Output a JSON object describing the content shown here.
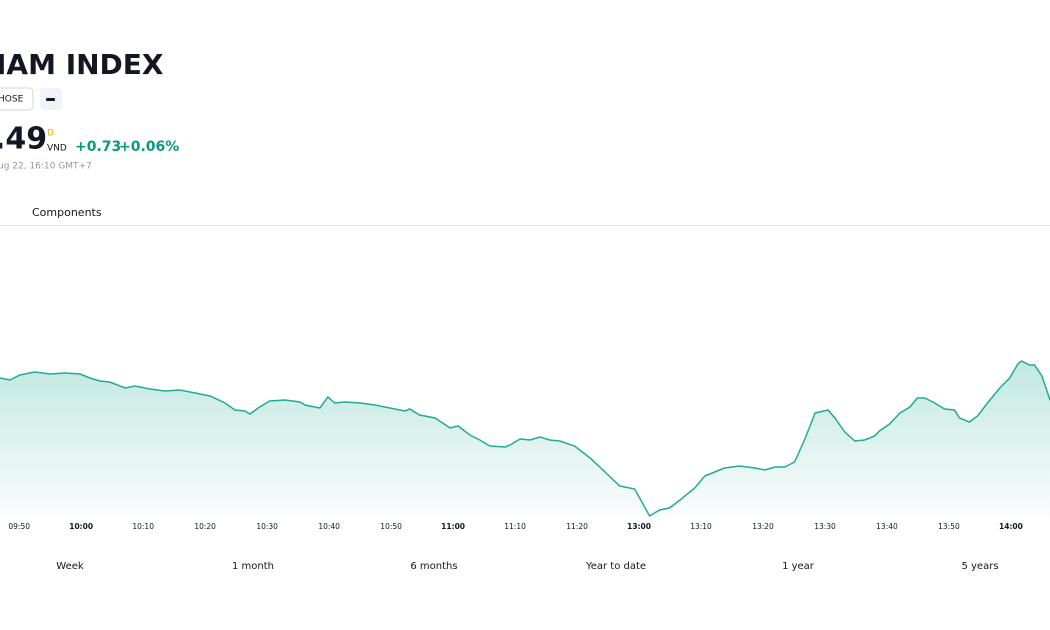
{
  "header": {
    "title": "IAM INDEX",
    "exchange": "HOSE",
    "price": ".49",
    "currency_mark": "D",
    "currency": "VND",
    "change": "+0.73",
    "change_percent": "+0.06%",
    "timestamp": "ug 22, 16:10 GMT+7"
  },
  "tabs": [
    "Components"
  ],
  "chart_data": {
    "type": "line",
    "color": "#22ab94",
    "x": [
      46.9,
      48.5,
      50.1,
      52.5,
      55.0,
      57.4,
      59.8,
      61.4,
      63.0,
      64.6,
      67.1,
      68.7,
      71.1,
      73.5,
      75.9,
      78.4,
      80.8,
      83.2,
      84.8,
      86.4,
      87.2,
      88.8,
      90.4,
      92.9,
      95.3,
      96.1,
      98.5,
      99.8,
      100.9,
      102.5,
      105.0,
      107.4,
      109.8,
      112.2,
      113.0,
      114.6,
      117.1,
      119.5,
      120.8,
      122.7,
      124.3,
      125.9,
      128.4,
      129.2,
      130.8,
      132.4,
      134.0,
      135.6,
      137.2,
      139.6,
      142.1,
      144.5,
      146.9,
      149.3,
      151.7,
      153.3,
      154.9,
      156.6,
      159.0,
      160.6,
      162.2,
      163.8,
      166.2,
      168.7,
      170.3,
      171.9,
      173.5,
      175.1,
      176.7,
      178.4,
      180.5,
      181.6,
      183.2,
      184.8,
      186.4,
      188.0,
      188.8,
      190.4,
      192.1,
      193.7,
      194.9,
      196.1,
      197.7,
      199.3,
      200.9,
      201.7,
      203.3,
      204.6,
      206.6,
      208.2,
      209.8,
      211.1,
      211.7,
      213.0,
      213.8,
      215.0,
      216.3
    ],
    "values": [
      139,
      137,
      142,
      145,
      143,
      144,
      143,
      139,
      136,
      135,
      129,
      131,
      128,
      126,
      127,
      124,
      121,
      114,
      107,
      106,
      103,
      110,
      116,
      117,
      115,
      112,
      109,
      120,
      114,
      115,
      114,
      112,
      109,
      106,
      108,
      102,
      99,
      89,
      91,
      82,
      77,
      71,
      70,
      72,
      78,
      77,
      80,
      77,
      76,
      71,
      59,
      45,
      31,
      28,
      1,
      7,
      9,
      17,
      29,
      41,
      45,
      49,
      51,
      49,
      47,
      50,
      50,
      55,
      77,
      104,
      107,
      99,
      85,
      76,
      77,
      81,
      86,
      93,
      104,
      110,
      119,
      119,
      114,
      108,
      107,
      99,
      95,
      101,
      117,
      129,
      139,
      153,
      156,
      152,
      152,
      141,
      117
    ],
    "xlim": [
      46.9,
      216.3
    ],
    "ylim": [
      0,
      300
    ],
    "xticks": [
      {
        "value": 50,
        "label": "09:50"
      },
      {
        "value": 60,
        "label": "10:00"
      },
      {
        "value": 70,
        "label": "10:10"
      },
      {
        "value": 80,
        "label": "10:20"
      },
      {
        "value": 90,
        "label": "10:30"
      },
      {
        "value": 100,
        "label": "10:40"
      },
      {
        "value": 110,
        "label": "10:50"
      },
      {
        "value": 120,
        "label": "11:00"
      },
      {
        "value": 130,
        "label": "11:10"
      },
      {
        "value": 140,
        "label": "11:20"
      },
      {
        "value": 150,
        "label": "13:00"
      },
      {
        "value": 160,
        "label": "13:10"
      },
      {
        "value": 170,
        "label": "13:20"
      },
      {
        "value": 180,
        "label": "13:30"
      },
      {
        "value": 190,
        "label": "13:40"
      },
      {
        "value": 200,
        "label": "13:50"
      },
      {
        "value": 210,
        "label": "14:00"
      }
    ]
  },
  "periods": [
    "Week",
    "1 month",
    "6 months",
    "Year to date",
    "1 year",
    "5 years"
  ]
}
